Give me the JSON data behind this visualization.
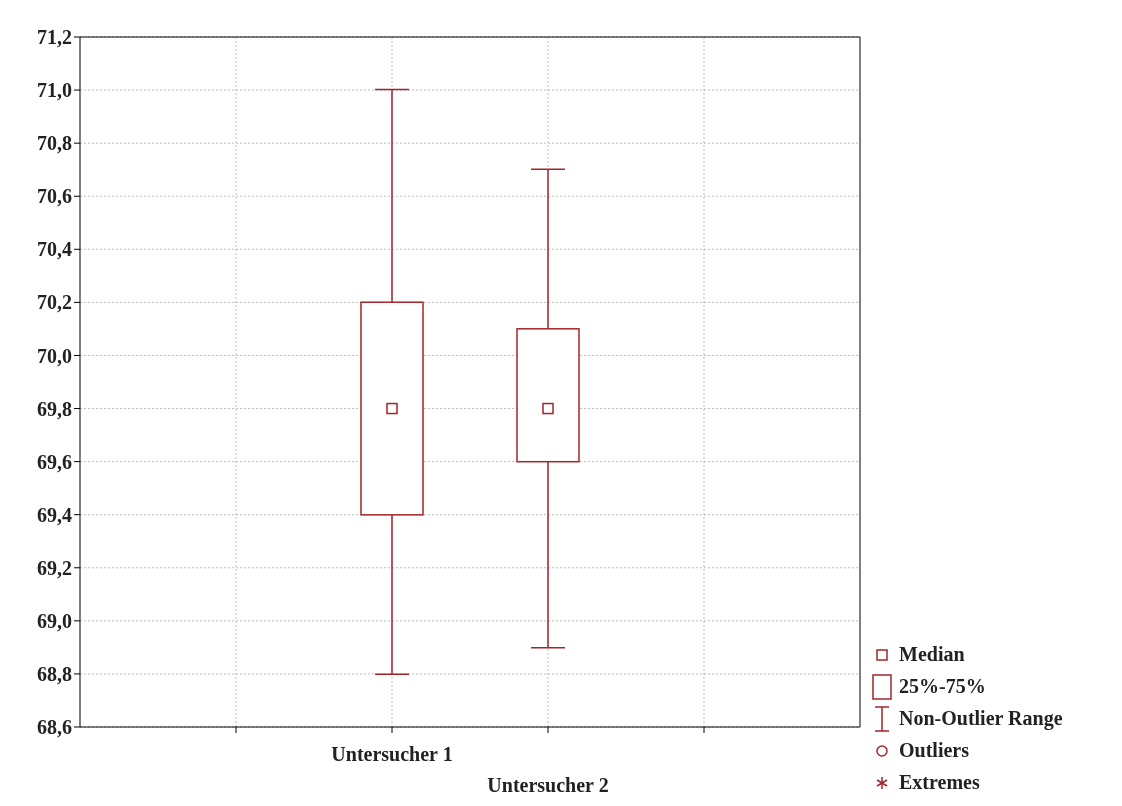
{
  "chart_data": {
    "type": "box",
    "categories": [
      "Untersucher 1",
      "Untersucher 2"
    ],
    "boxes": [
      {
        "low": 68.8,
        "q1": 69.4,
        "median": 69.8,
        "q3": 70.2,
        "high": 71.0
      },
      {
        "low": 68.9,
        "q1": 69.6,
        "median": 69.8,
        "q3": 70.1,
        "high": 70.7
      }
    ],
    "color": "#a3262a",
    "marker": "square",
    "ylim": [
      68.6,
      71.2
    ],
    "yticks": [
      {
        "value": 68.6,
        "label": "68,6"
      },
      {
        "value": 68.8,
        "label": "68,8"
      },
      {
        "value": 69.0,
        "label": "69,0"
      },
      {
        "value": 69.2,
        "label": "69,2"
      },
      {
        "value": 69.4,
        "label": "69,4"
      },
      {
        "value": 69.6,
        "label": "69,6"
      },
      {
        "value": 69.8,
        "label": "69,8"
      },
      {
        "value": 70.0,
        "label": "70,0"
      },
      {
        "value": 70.2,
        "label": "70,2"
      },
      {
        "value": 70.4,
        "label": "70,4"
      },
      {
        "value": 70.6,
        "label": "70,6"
      },
      {
        "value": 70.8,
        "label": "70,8"
      },
      {
        "value": 71.0,
        "label": "71,0"
      },
      {
        "value": 71.2,
        "label": "71,2"
      }
    ],
    "grid": true,
    "annotations": [
      "Median",
      "25%-75%",
      "Non-Outlier Range",
      "Outliers",
      "Extremes"
    ]
  }
}
